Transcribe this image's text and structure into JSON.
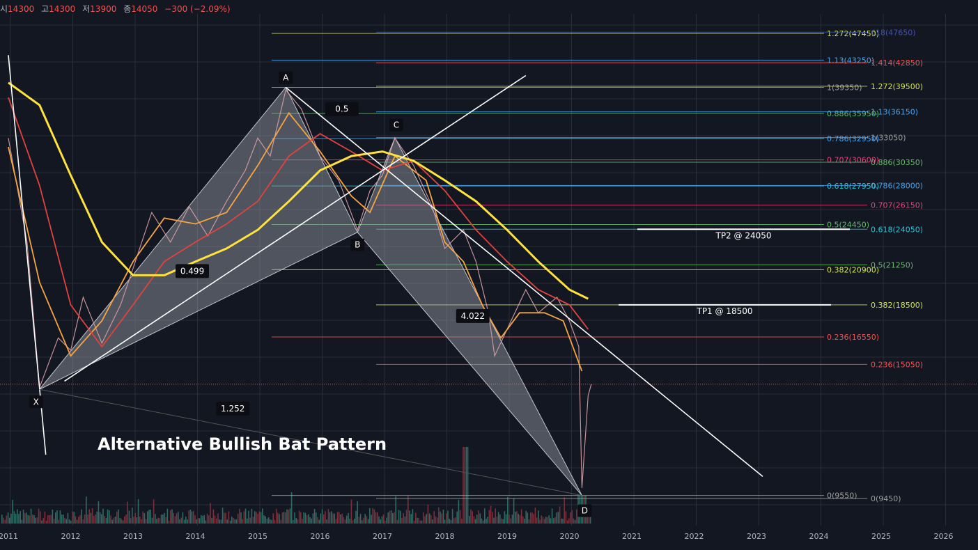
{
  "ohlc": {
    "open_label": "시",
    "open": "14300",
    "high_label": "고",
    "high": "14300",
    "low_label": "저",
    "low": "13900",
    "close_label": "종",
    "close": "14050",
    "change": "−300 (−2.09%)"
  },
  "colors": {
    "background": "#131722",
    "grid": "#2a2e39",
    "up": "#26a69a",
    "down": "#ef5350",
    "ma_short": "#f7a541",
    "ma_mid": "#e0443c",
    "ma_long": "#ffe23d",
    "pattern": "#9aa0a8"
  },
  "chart_data": {
    "type": "line",
    "title": "Alternative Bullish Bat Pattern",
    "x_tick_labels": [
      "2011",
      "2012",
      "2013",
      "2014",
      "2015",
      "2016",
      "2017",
      "2018",
      "2019",
      "2020",
      "2021",
      "2022",
      "2023",
      "2024",
      "2025",
      "2026"
    ],
    "xlim": [
      2011.0,
      2026.5
    ],
    "ylim": [
      8000,
      50000
    ],
    "log_scale": true,
    "grid": true,
    "current_price": 14050,
    "pattern_points": [
      {
        "label": "X",
        "x": 2011.5,
        "y": 13800
      },
      {
        "label": "A",
        "x": 2015.45,
        "y": 39350
      },
      {
        "label": "B",
        "x": 2016.6,
        "y": 23800
      },
      {
        "label": "C",
        "x": 2017.2,
        "y": 33050
      },
      {
        "label": "D",
        "x": 2020.2,
        "y": 9550
      }
    ],
    "ratio_labels": [
      {
        "text": "0.499",
        "x": 2013.95,
        "y": 20800
      },
      {
        "text": "0.5",
        "x": 2016.35,
        "y": 36500
      },
      {
        "text": "4.022",
        "x": 2018.45,
        "y": 17800
      },
      {
        "text": "1.252",
        "x": 2014.6,
        "y": 12900
      }
    ],
    "pattern_caption": "Alternative Bullish Bat Pattern",
    "fib_levels": [
      {
        "text": "1.272(47450)",
        "price": 47450,
        "color": "#d4e157",
        "side": "a"
      },
      {
        "text": "618(47650)",
        "price": 47650,
        "color": "#3f51b5",
        "side": "b"
      },
      {
        "text": "1.13(43250)",
        "price": 43250,
        "color": "#42a5f5",
        "side": "a"
      },
      {
        "text": "1.414(42850)",
        "price": 42850,
        "color": "#ef5350",
        "side": "b"
      },
      {
        "text": "1(39350)",
        "price": 39350,
        "color": "#9e9e9e",
        "side": "a"
      },
      {
        "text": "1.272(39500)",
        "price": 39500,
        "color": "#d4e157",
        "side": "b"
      },
      {
        "text": "0.886(35950)",
        "price": 35950,
        "color": "#66bb6a",
        "side": "a"
      },
      {
        "text": "1.13(36150)",
        "price": 36150,
        "color": "#42a5f5",
        "side": "b"
      },
      {
        "text": "0.786(32950)",
        "price": 32950,
        "color": "#42a5f5",
        "side": "a"
      },
      {
        "text": "1(33050)",
        "price": 33050,
        "color": "#9e9e9e",
        "side": "b"
      },
      {
        "text": "0.707(30600)",
        "price": 30600,
        "color": "#ec407a",
        "side": "a"
      },
      {
        "text": "0.886(30350)",
        "price": 30350,
        "color": "#66bb6a",
        "side": "b"
      },
      {
        "text": "0.618(27950)",
        "price": 27950,
        "color": "#26c6da",
        "side": "a"
      },
      {
        "text": "0.786(28000)",
        "price": 28000,
        "color": "#42a5f5",
        "side": "b"
      },
      {
        "text": "0.707(26150)",
        "price": 26150,
        "color": "#ec407a",
        "side": "b"
      },
      {
        "text": "0.5(24450)",
        "price": 24450,
        "color": "#66bb6a",
        "side": "a"
      },
      {
        "text": "0.618(24050)",
        "price": 24050,
        "color": "#26c6da",
        "side": "b"
      },
      {
        "text": "0.382(20900)",
        "price": 20900,
        "color": "#d4e157",
        "side": "a"
      },
      {
        "text": "0.5(21250)",
        "price": 21250,
        "color": "#66bb6a",
        "side": "b"
      },
      {
        "text": "0.382(18500)",
        "price": 18500,
        "color": "#d4e157",
        "side": "b"
      },
      {
        "text": "0.236(16550)",
        "price": 16550,
        "color": "#ef5350",
        "side": "a"
      },
      {
        "text": "0.236(15050)",
        "price": 15050,
        "color": "#ef5350",
        "side": "b"
      },
      {
        "text": "0(9550)",
        "price": 9550,
        "color": "#9e9e9e",
        "side": "a"
      },
      {
        "text": "0(9450)",
        "price": 9450,
        "color": "#9e9e9e",
        "side": "b"
      }
    ],
    "targets": [
      {
        "text": "TP1 @ 18500",
        "price": 18500
      },
      {
        "text": "TP2 @ 24050",
        "price": 24050
      }
    ],
    "moving_averages": [
      {
        "name": "",
        "color": "#f7a541",
        "points": [
          [
            2011.0,
            32000
          ],
          [
            2011.5,
            20000
          ],
          [
            2012.0,
            15500
          ],
          [
            2012.5,
            17500
          ],
          [
            2013.0,
            21500
          ],
          [
            2013.5,
            25000
          ],
          [
            2014.0,
            24500
          ],
          [
            2014.5,
            25500
          ],
          [
            2015.0,
            30000
          ],
          [
            2015.5,
            36000
          ],
          [
            2016.0,
            31500
          ],
          [
            2016.5,
            27000
          ],
          [
            2016.8,
            25500
          ],
          [
            2017.2,
            31000
          ],
          [
            2017.7,
            28500
          ],
          [
            2018.0,
            23000
          ],
          [
            2018.3,
            21500
          ],
          [
            2018.6,
            18500
          ],
          [
            2018.9,
            16500
          ],
          [
            2019.2,
            18000
          ],
          [
            2019.6,
            18000
          ],
          [
            2019.9,
            17500
          ],
          [
            2020.2,
            14700
          ]
        ]
      },
      {
        "name": "",
        "color": "#e0443c",
        "points": [
          [
            2011.0,
            38000
          ],
          [
            2011.5,
            28000
          ],
          [
            2012.0,
            18500
          ],
          [
            2012.5,
            16000
          ],
          [
            2013.0,
            18500
          ],
          [
            2013.5,
            21500
          ],
          [
            2014.0,
            23000
          ],
          [
            2014.5,
            24500
          ],
          [
            2015.0,
            26500
          ],
          [
            2015.5,
            31000
          ],
          [
            2016.0,
            33500
          ],
          [
            2016.5,
            31500
          ],
          [
            2017.0,
            29500
          ],
          [
            2017.5,
            30500
          ],
          [
            2018.0,
            27500
          ],
          [
            2018.5,
            24000
          ],
          [
            2019.0,
            21500
          ],
          [
            2019.5,
            19500
          ],
          [
            2020.0,
            18500
          ],
          [
            2020.3,
            17000
          ]
        ]
      },
      {
        "name": "",
        "color": "#ffe23d",
        "points": [
          [
            2011.0,
            40000
          ],
          [
            2011.5,
            37000
          ],
          [
            2012.0,
            29000
          ],
          [
            2012.5,
            23000
          ],
          [
            2013.0,
            20500
          ],
          [
            2013.5,
            20500
          ],
          [
            2014.0,
            21500
          ],
          [
            2014.5,
            22500
          ],
          [
            2015.0,
            24000
          ],
          [
            2015.5,
            26500
          ],
          [
            2016.0,
            29500
          ],
          [
            2016.5,
            31000
          ],
          [
            2017.0,
            31500
          ],
          [
            2017.5,
            30500
          ],
          [
            2018.0,
            28500
          ],
          [
            2018.5,
            26500
          ],
          [
            2019.0,
            24000
          ],
          [
            2019.5,
            21500
          ],
          [
            2020.0,
            19500
          ],
          [
            2020.3,
            18900
          ]
        ]
      }
    ],
    "price_path": [
      [
        2011.0,
        33000
      ],
      [
        2011.3,
        23000
      ],
      [
        2011.5,
        13900
      ],
      [
        2011.8,
        16500
      ],
      [
        2012.0,
        15800
      ],
      [
        2012.2,
        19000
      ],
      [
        2012.5,
        16200
      ],
      [
        2012.8,
        18500
      ],
      [
        2013.0,
        21000
      ],
      [
        2013.3,
        25500
      ],
      [
        2013.6,
        23000
      ],
      [
        2013.9,
        26000
      ],
      [
        2014.2,
        23500
      ],
      [
        2014.5,
        26500
      ],
      [
        2014.8,
        29500
      ],
      [
        2015.0,
        33000
      ],
      [
        2015.2,
        31000
      ],
      [
        2015.45,
        39000
      ],
      [
        2015.7,
        36500
      ],
      [
        2016.0,
        31000
      ],
      [
        2016.3,
        28500
      ],
      [
        2016.6,
        24000
      ],
      [
        2016.8,
        27500
      ],
      [
        2017.0,
        29000
      ],
      [
        2017.2,
        33000
      ],
      [
        2017.5,
        30000
      ],
      [
        2017.8,
        26000
      ],
      [
        2018.0,
        22500
      ],
      [
        2018.3,
        24000
      ],
      [
        2018.5,
        21500
      ],
      [
        2018.7,
        18000
      ],
      [
        2018.8,
        15500
      ],
      [
        2019.0,
        17000
      ],
      [
        2019.3,
        19500
      ],
      [
        2019.5,
        18000
      ],
      [
        2019.8,
        19000
      ],
      [
        2020.0,
        17500
      ],
      [
        2020.15,
        16000
      ],
      [
        2020.2,
        9800
      ],
      [
        2020.3,
        13500
      ],
      [
        2020.35,
        14050
      ]
    ],
    "trend_lines": [
      {
        "from": [
          2011.0,
          44000
        ],
        "to": [
          2011.6,
          11000
        ]
      },
      {
        "from": [
          2011.9,
          14200
        ],
        "to": [
          2019.3,
          41000
        ]
      },
      {
        "from": [
          2015.45,
          39350
        ],
        "to": [
          2023.1,
          10200
        ]
      },
      {
        "from": [
          2011.5,
          13800
        ],
        "to": [
          2020.2,
          9550
        ]
      }
    ]
  }
}
